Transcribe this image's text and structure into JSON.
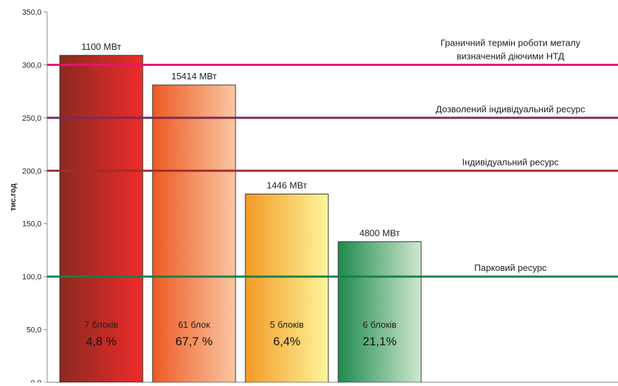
{
  "chart_data": {
    "type": "bar",
    "ylabel": "тис.год",
    "ylim": [
      0,
      350
    ],
    "yticks": [
      "0,0",
      "50,0",
      "100,0",
      "150,0",
      "200,0",
      "250,0",
      "300,0",
      "350,0"
    ],
    "ytick_values": [
      0,
      50,
      100,
      150,
      200,
      250,
      300,
      350
    ],
    "grid": false,
    "values": [
      309,
      281,
      178,
      133
    ],
    "bars": [
      {
        "value": 309,
        "capacity": "1100 МВт",
        "units": "7 блоків",
        "percent": "4,8 %",
        "colors": [
          "#8b2a1f",
          "#ee2b2b"
        ]
      },
      {
        "value": 281,
        "capacity": "15414 МВт",
        "units": "61 блок",
        "percent": "67,7 %",
        "colors": [
          "#ec5a22",
          "#fbc7a3"
        ]
      },
      {
        "value": 178,
        "capacity": "1446 МВт",
        "units": "5 блоків",
        "percent": "6,4%",
        "colors": [
          "#f39a27",
          "#fdf69a"
        ]
      },
      {
        "value": 133,
        "capacity": "4800 МВт",
        "units": "6 блоків",
        "percent": "21,1%",
        "colors": [
          "#1f8a4d",
          "#cfe8cf"
        ]
      }
    ],
    "reference_lines": [
      {
        "value": 300,
        "color": "#e8136f",
        "label_lines": [
          "Граничний термін роботи металу",
          "визначений діючими НТД"
        ]
      },
      {
        "value": 250,
        "color": "#7a2a5a",
        "label_lines": [
          "Дозволений індивідуальний ресурс"
        ]
      },
      {
        "value": 200,
        "color": "#a52a2a",
        "label_lines": [
          "Індивідуальний ресурс"
        ]
      },
      {
        "value": 100,
        "color": "#16804a",
        "label_lines": [
          "Парковий ресурс"
        ]
      }
    ]
  }
}
